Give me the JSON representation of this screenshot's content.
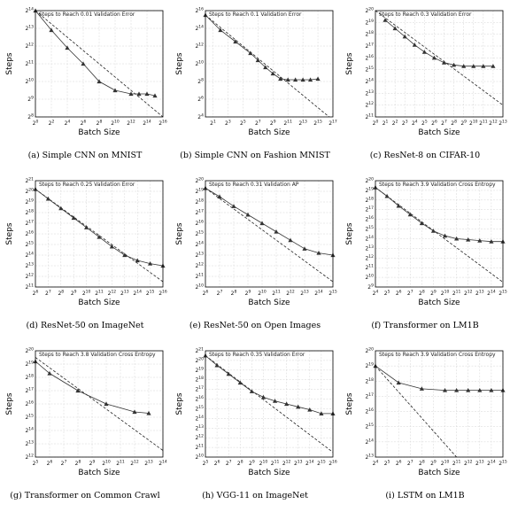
{
  "chart_data": [
    {
      "type": "line",
      "caption": "(a) Simple CNN on MNIST",
      "title": "Steps to Reach 0.01 Validation Error",
      "xlabel": "Batch Size",
      "ylabel": "Steps",
      "x_log2_range": [
        0,
        16
      ],
      "y_log2_range": [
        8,
        14
      ],
      "x_tick_exponents": [
        0,
        2,
        4,
        6,
        8,
        10,
        12,
        14,
        16
      ],
      "y_tick_exponents": [
        8,
        9,
        10,
        11,
        12,
        13,
        14
      ],
      "x_log2": [
        0,
        2,
        4,
        6,
        8,
        10,
        12,
        13,
        14,
        15
      ],
      "y_log2": [
        14,
        12.9,
        11.9,
        11.0,
        10.0,
        9.5,
        9.3,
        9.3,
        9.3,
        9.2
      ],
      "ideal_log2": [
        [
          0,
          14
        ],
        [
          16,
          8
        ]
      ],
      "grid": true
    },
    {
      "type": "line",
      "caption": "(b) Simple CNN on Fashion MNIST",
      "title": "Steps to Reach 0.1 Validation Error",
      "xlabel": "Batch Size",
      "ylabel": "Steps",
      "x_log2_range": [
        0,
        17
      ],
      "y_log2_range": [
        4,
        16
      ],
      "x_tick_exponents": [
        1,
        3,
        5,
        7,
        9,
        11,
        13,
        15,
        17
      ],
      "y_tick_exponents": [
        4,
        6,
        8,
        10,
        12,
        14,
        16
      ],
      "x_log2": [
        0,
        2,
        4,
        6,
        7,
        8,
        9,
        10,
        11,
        12,
        13,
        14,
        15
      ],
      "y_log2": [
        15.5,
        13.8,
        12.5,
        11.2,
        10.4,
        9.6,
        8.9,
        8.3,
        8.2,
        8.2,
        8.2,
        8.2,
        8.3
      ],
      "ideal_log2": [
        [
          0,
          15.5
        ],
        [
          16.5,
          4
        ]
      ],
      "grid": true
    },
    {
      "type": "line",
      "caption": "(c) ResNet-8 on CIFAR-10",
      "title": "Steps to Reach 0.3 Validation Error",
      "xlabel": "Batch Size",
      "ylabel": "Steps",
      "x_log2_range": [
        0,
        13
      ],
      "y_log2_range": [
        11,
        20
      ],
      "x_tick_exponents": [
        0,
        1,
        2,
        3,
        4,
        5,
        6,
        7,
        8,
        9,
        10,
        11,
        12,
        13
      ],
      "y_tick_exponents": [
        11,
        12,
        13,
        14,
        15,
        16,
        17,
        18,
        19,
        20
      ],
      "x_log2": [
        1,
        2,
        3,
        4,
        5,
        6,
        7,
        8,
        9,
        10,
        11,
        12
      ],
      "y_log2": [
        19.2,
        18.5,
        17.8,
        17.1,
        16.5,
        16.0,
        15.6,
        15.4,
        15.3,
        15.3,
        15.3,
        15.3
      ],
      "ideal_log2": [
        [
          0,
          20
        ],
        [
          13,
          12
        ]
      ],
      "grid": true
    },
    {
      "type": "line",
      "caption": "(d) ResNet-50 on ImageNet",
      "title": "Steps to Reach 0.25 Validation Error",
      "xlabel": "Batch Size",
      "ylabel": "Steps",
      "x_log2_range": [
        6,
        16
      ],
      "y_log2_range": [
        11,
        21
      ],
      "x_tick_exponents": [
        6,
        7,
        8,
        9,
        10,
        11,
        12,
        13,
        14,
        15,
        16
      ],
      "y_tick_exponents": [
        11,
        12,
        13,
        14,
        15,
        16,
        17,
        18,
        19,
        20,
        21
      ],
      "x_log2": [
        6,
        7,
        8,
        9,
        10,
        11,
        12,
        13,
        14,
        15,
        16
      ],
      "y_log2": [
        20.2,
        19.3,
        18.4,
        17.5,
        16.6,
        15.7,
        14.8,
        14.0,
        13.5,
        13.2,
        13.0
      ],
      "ideal_log2": [
        [
          6,
          20.2
        ],
        [
          16,
          11.5
        ]
      ],
      "grid": true
    },
    {
      "type": "line",
      "caption": "(e) ResNet-50 on Open Images",
      "title": "Steps to Reach 0.31 Validation AP",
      "xlabel": "Batch Size",
      "ylabel": "Steps",
      "x_log2_range": [
        6,
        15
      ],
      "y_log2_range": [
        10,
        20
      ],
      "x_tick_exponents": [
        6,
        7,
        8,
        9,
        10,
        11,
        12,
        13,
        14,
        15
      ],
      "y_tick_exponents": [
        10,
        11,
        12,
        13,
        14,
        15,
        16,
        17,
        18,
        19,
        20
      ],
      "x_log2": [
        6,
        7,
        8,
        9,
        10,
        11,
        12,
        13,
        14,
        15
      ],
      "y_log2": [
        19.3,
        18.5,
        17.6,
        16.8,
        16.0,
        15.2,
        14.4,
        13.6,
        13.2,
        13.0
      ],
      "ideal_log2": [
        [
          6,
          19.3
        ],
        [
          15,
          10.5
        ]
      ],
      "grid": true
    },
    {
      "type": "line",
      "caption": "(f) Transformer on LM1B",
      "title": "Steps to Reach 3.9 Validation Cross Entropy",
      "xlabel": "Batch Size",
      "ylabel": "Steps",
      "x_log2_range": [
        4,
        15
      ],
      "y_log2_range": [
        9,
        20
      ],
      "x_tick_exponents": [
        4,
        5,
        6,
        7,
        8,
        9,
        10,
        11,
        12,
        13,
        14,
        15
      ],
      "y_tick_exponents": [
        9,
        10,
        11,
        12,
        13,
        14,
        15,
        16,
        17,
        18,
        19,
        20
      ],
      "x_log2": [
        4,
        5,
        6,
        7,
        8,
        9,
        10,
        11,
        12,
        13,
        14,
        15
      ],
      "y_log2": [
        19.3,
        18.4,
        17.4,
        16.5,
        15.6,
        14.8,
        14.3,
        14.0,
        13.9,
        13.8,
        13.7,
        13.7
      ],
      "ideal_log2": [
        [
          4,
          19.3
        ],
        [
          15,
          9.5
        ]
      ],
      "grid": true
    },
    {
      "type": "line",
      "caption": "(g) Transformer on Common Crawl",
      "title": "Steps to Reach 3.8 Validation Cross Entropy",
      "xlabel": "Batch Size",
      "ylabel": "Steps",
      "x_log2_range": [
        5,
        14
      ],
      "y_log2_range": [
        12,
        20
      ],
      "x_tick_exponents": [
        5,
        6,
        7,
        8,
        9,
        10,
        11,
        12,
        13,
        14
      ],
      "y_tick_exponents": [
        12,
        13,
        14,
        15,
        16,
        17,
        18,
        19,
        20
      ],
      "x_log2": [
        5,
        6,
        8,
        10,
        12,
        13
      ],
      "y_log2": [
        19.2,
        18.3,
        17.0,
        16.0,
        15.4,
        15.3
      ],
      "ideal_log2": [
        [
          5,
          19.5
        ],
        [
          14,
          12.5
        ]
      ],
      "grid": true
    },
    {
      "type": "line",
      "caption": "(h) VGG-11 on ImageNet",
      "title": "Steps to Reach 0.35 Validation Error",
      "xlabel": "Batch Size",
      "ylabel": "Steps",
      "x_log2_range": [
        5,
        16
      ],
      "y_log2_range": [
        10,
        21
      ],
      "x_tick_exponents": [
        5,
        6,
        7,
        8,
        9,
        10,
        11,
        12,
        13,
        14,
        15,
        16
      ],
      "y_tick_exponents": [
        10,
        11,
        12,
        13,
        14,
        15,
        16,
        17,
        18,
        19,
        20,
        21
      ],
      "x_log2": [
        5,
        6,
        7,
        8,
        9,
        10,
        11,
        12,
        13,
        14,
        15,
        16
      ],
      "y_log2": [
        20.5,
        19.5,
        18.6,
        17.7,
        16.8,
        16.2,
        15.8,
        15.5,
        15.2,
        14.9,
        14.5,
        14.5
      ],
      "ideal_log2": [
        [
          5,
          20.5
        ],
        [
          16,
          10.5
        ]
      ],
      "grid": true
    },
    {
      "type": "line",
      "caption": "(i) LSTM on LM1B",
      "title": "Steps to Reach 3.9 Validation Cross Entropy",
      "xlabel": "Batch Size",
      "ylabel": "Steps",
      "x_log2_range": [
        4,
        15
      ],
      "y_log2_range": [
        13,
        20
      ],
      "x_tick_exponents": [
        4,
        5,
        6,
        7,
        8,
        9,
        10,
        11,
        12,
        13,
        14,
        15
      ],
      "y_tick_exponents": [
        13,
        14,
        15,
        16,
        17,
        18,
        19,
        20
      ],
      "x_log2": [
        4,
        6,
        8,
        10,
        11,
        12,
        13,
        14,
        15
      ],
      "y_log2": [
        19.0,
        17.9,
        17.5,
        17.4,
        17.4,
        17.4,
        17.4,
        17.4,
        17.4
      ],
      "ideal_log2": [
        [
          4,
          19.0
        ],
        [
          11,
          13
        ]
      ],
      "grid": true
    }
  ]
}
